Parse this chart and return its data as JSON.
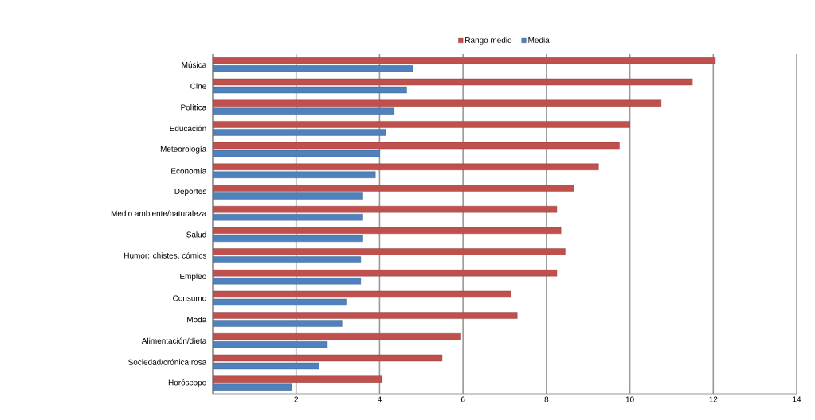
{
  "chart_data": {
    "type": "bar",
    "orientation": "horizontal",
    "categories": [
      "Música",
      "Cine",
      "Política",
      "Educación",
      "Meteorología",
      "Economía",
      "Deportes",
      "Medio ambiente/naturaleza",
      "Salud",
      "Humor: chistes, cómics",
      "Empleo",
      "Consumo",
      "Moda",
      "Alimentación/dieta",
      "Sociedad/crónica rosa",
      "Horóscopo"
    ],
    "series": [
      {
        "name": "Rango medio",
        "color": "#c0504d",
        "values": [
          12.05,
          11.5,
          10.75,
          10.0,
          9.75,
          9.25,
          8.65,
          8.25,
          8.35,
          8.45,
          8.25,
          7.15,
          7.3,
          5.95,
          5.5,
          4.05
        ]
      },
      {
        "name": "Media",
        "color": "#4f81bd",
        "values": [
          4.8,
          4.65,
          4.35,
          4.15,
          4.0,
          3.9,
          3.6,
          3.6,
          3.6,
          3.55,
          3.55,
          3.2,
          3.1,
          2.75,
          2.55,
          1.9
        ]
      }
    ],
    "xlim": [
      0,
      14
    ],
    "xticks": [
      {
        "value": 0,
        "label": null
      },
      2,
      4,
      6,
      8,
      10,
      12,
      14
    ],
    "grid": "x",
    "legend": "top"
  }
}
